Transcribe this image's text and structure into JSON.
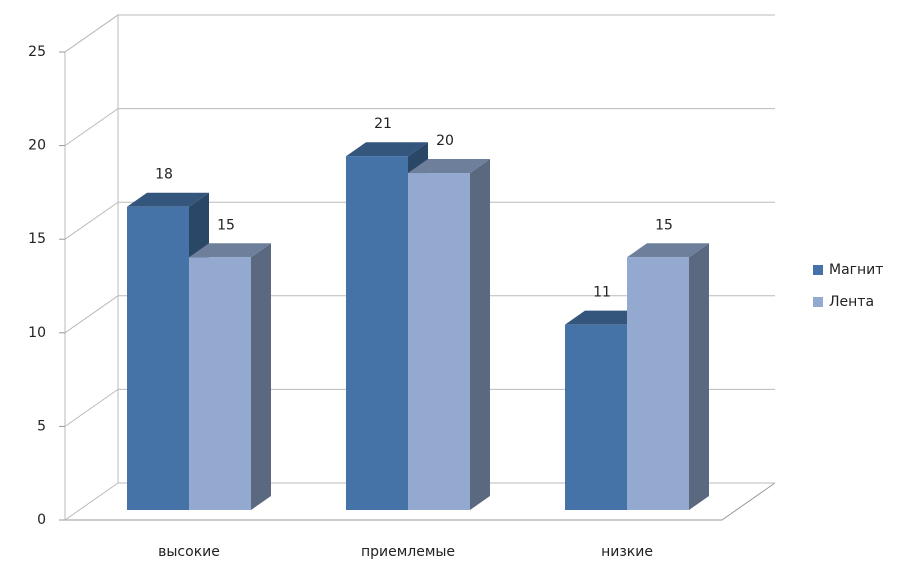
{
  "chart_data": {
    "type": "bar3d",
    "categories": [
      "высокие",
      "приемлемые",
      "низкие"
    ],
    "series": [
      {
        "name": "Магнит",
        "color": "#4572a7",
        "values": [
          18,
          21,
          11
        ]
      },
      {
        "name": "Лента",
        "color": "#93a9cf",
        "values": [
          15,
          20,
          15
        ]
      }
    ],
    "ylim": [
      0,
      25
    ],
    "yticks": [
      0,
      5,
      10,
      15,
      20,
      25
    ],
    "grid": true,
    "legend": "right"
  }
}
